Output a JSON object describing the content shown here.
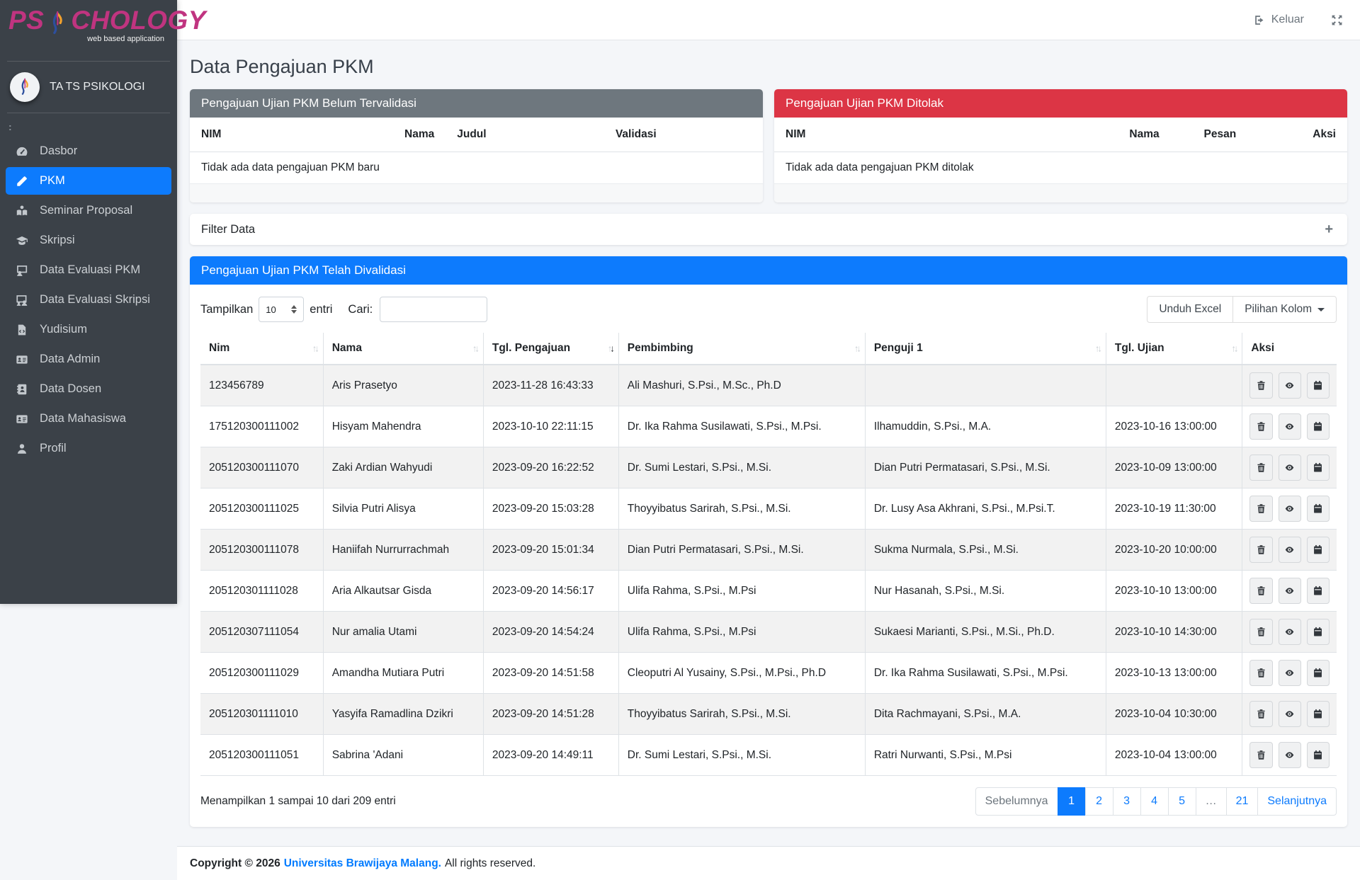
{
  "colors": {
    "primary": "#0d7bfd",
    "danger": "#dc3545",
    "secondary": "#6e777e",
    "sidebar_bg": "#3b4148",
    "brand": "#c03480",
    "body_bg": "#f4f6f9"
  },
  "brand": {
    "prefix": "PS",
    "suffix": "CHOLOGY",
    "tagline": "web based application",
    "logo_icon": "flame-icon"
  },
  "user": {
    "name": "TA TS PSIKOLOGI",
    "avatar_icon": "flame-icon"
  },
  "topbar": {
    "logout_label": "Keluar",
    "logout_icon": "sign-out-icon",
    "expand_icon": "expand-arrows-icon"
  },
  "sidebar": {
    "items": [
      {
        "label": "Dasbor",
        "icon": "gauge-icon",
        "active": false
      },
      {
        "label": "PKM",
        "icon": "pencil-icon",
        "active": true
      },
      {
        "label": "Seminar Proposal",
        "icon": "book-reader-icon",
        "active": false
      },
      {
        "label": "Skripsi",
        "icon": "graduation-cap-icon",
        "active": false
      },
      {
        "label": "Data Evaluasi PKM",
        "icon": "chalkboard-user-icon",
        "active": false
      },
      {
        "label": "Data Evaluasi Skripsi",
        "icon": "chalkboard-users-icon",
        "active": false
      },
      {
        "label": "Yudisium",
        "icon": "file-code-icon",
        "active": false
      },
      {
        "label": "Data Admin",
        "icon": "id-card-icon",
        "active": false
      },
      {
        "label": "Data Dosen",
        "icon": "address-book-icon",
        "active": false
      },
      {
        "label": "Data Mahasiswa",
        "icon": "id-card-icon",
        "active": false
      },
      {
        "label": "Profil",
        "icon": "user-icon",
        "active": false
      }
    ]
  },
  "page": {
    "title": "Data Pengajuan PKM"
  },
  "cards": {
    "pending": {
      "title": "Pengajuan Ujian PKM Belum Tervalidasi",
      "columns": [
        "NIM",
        "Nama",
        "Judul",
        "Validasi"
      ],
      "empty_text": "Tidak ada data pengajuan PKM baru"
    },
    "rejected": {
      "title": "Pengajuan Ujian PKM Ditolak",
      "columns": [
        "NIM",
        "Nama",
        "Pesan",
        "Aksi"
      ],
      "empty_text": "Tidak ada data pengajuan PKM ditolak"
    }
  },
  "filter": {
    "title": "Filter Data",
    "expand_icon": "plus-icon"
  },
  "validated": {
    "title": "Pengajuan Ujian PKM Telah Divalidasi",
    "length_label_before": "Tampilkan",
    "length_value": "10",
    "length_label_after": "entri",
    "search_label": "Cari:",
    "search_value": "",
    "excel_button": "Unduh Excel",
    "columns_button": "Pilihan Kolom",
    "table": {
      "columns": [
        {
          "label": "Nim",
          "sort": "none"
        },
        {
          "label": "Nama",
          "sort": "none"
        },
        {
          "label": "Tgl. Pengajuan",
          "sort": "desc"
        },
        {
          "label": "Pembimbing",
          "sort": "none"
        },
        {
          "label": "Penguji 1",
          "sort": "none"
        },
        {
          "label": "Tgl. Ujian",
          "sort": "none"
        },
        {
          "label": "Aksi",
          "sort": null
        }
      ],
      "rows": [
        {
          "nim": "123456789",
          "nama": "Aris Prasetyo",
          "tgl_pengajuan": "2023-11-28 16:43:33",
          "pembimbing": "Ali Mashuri, S.Psi., M.Sc., Ph.D",
          "penguji1": "",
          "tgl_ujian": ""
        },
        {
          "nim": "175120300111002",
          "nama": "Hisyam Mahendra",
          "tgl_pengajuan": "2023-10-10 22:11:15",
          "pembimbing": "Dr. Ika Rahma Susilawati, S.Psi., M.Psi.",
          "penguji1": "Ilhamuddin, S.Psi., M.A.",
          "tgl_ujian": "2023-10-16 13:00:00"
        },
        {
          "nim": "205120300111070",
          "nama": "Zaki Ardian Wahyudi",
          "tgl_pengajuan": "2023-09-20 16:22:52",
          "pembimbing": "Dr. Sumi Lestari, S.Psi., M.Si.",
          "penguji1": "Dian Putri Permatasari, S.Psi., M.Si.",
          "tgl_ujian": "2023-10-09 13:00:00"
        },
        {
          "nim": "205120300111025",
          "nama": "Silvia Putri Alisya",
          "tgl_pengajuan": "2023-09-20 15:03:28",
          "pembimbing": "Thoyyibatus Sarirah, S.Psi., M.Si.",
          "penguji1": "Dr. Lusy Asa Akhrani, S.Psi., M.Psi.T.",
          "tgl_ujian": "2023-10-19 11:30:00"
        },
        {
          "nim": "205120300111078",
          "nama": "Haniifah Nurrurrachmah",
          "tgl_pengajuan": "2023-09-20 15:01:34",
          "pembimbing": "Dian Putri Permatasari, S.Psi., M.Si.",
          "penguji1": "Sukma Nurmala, S.Psi., M.Si.",
          "tgl_ujian": "2023-10-20 10:00:00"
        },
        {
          "nim": "205120301111028",
          "nama": "Aria Alkautsar Gisda",
          "tgl_pengajuan": "2023-09-20 14:56:17",
          "pembimbing": "Ulifa Rahma, S.Psi., M.Psi",
          "penguji1": "Nur Hasanah, S.Psi., M.Si.",
          "tgl_ujian": "2023-10-10 13:00:00"
        },
        {
          "nim": "205120307111054",
          "nama": "Nur amalia Utami",
          "tgl_pengajuan": "2023-09-20 14:54:24",
          "pembimbing": "Ulifa Rahma, S.Psi., M.Psi",
          "penguji1": "Sukaesi Marianti, S.Psi., M.Si., Ph.D.",
          "tgl_ujian": "2023-10-10 14:30:00"
        },
        {
          "nim": "205120300111029",
          "nama": "Amandha Mutiara Putri",
          "tgl_pengajuan": "2023-09-20 14:51:58",
          "pembimbing": "Cleoputri Al Yusainy, S.Psi., M.Psi., Ph.D",
          "penguji1": "Dr. Ika Rahma Susilawati, S.Psi., M.Psi.",
          "tgl_ujian": "2023-10-13 13:00:00"
        },
        {
          "nim": "205120301111010",
          "nama": "Yasyifa Ramadlina Dzikri",
          "tgl_pengajuan": "2023-09-20 14:51:28",
          "pembimbing": "Thoyyibatus Sarirah, S.Psi., M.Si.",
          "penguji1": "Dita Rachmayani, S.Psi., M.A.",
          "tgl_ujian": "2023-10-04 10:30:00"
        },
        {
          "nim": "205120300111051",
          "nama": "Sabrina 'Adani",
          "tgl_pengajuan": "2023-09-20 14:49:11",
          "pembimbing": "Dr. Sumi Lestari, S.Psi., M.Si.",
          "penguji1": "Ratri Nurwanti, S.Psi., M.Psi",
          "tgl_ujian": "2023-10-04 13:00:00"
        }
      ],
      "row_actions": [
        {
          "name": "delete",
          "icon": "trash-icon"
        },
        {
          "name": "view",
          "icon": "eye-icon"
        },
        {
          "name": "schedule",
          "icon": "calendar-icon"
        }
      ]
    },
    "info_text": "Menampilkan 1 sampai 10 dari 209 entri",
    "pagination": {
      "prev": "Sebelumnya",
      "pages": [
        "1",
        "2",
        "3",
        "4",
        "5",
        "…",
        "21"
      ],
      "active_page": "1",
      "muted_pages": [
        "…"
      ],
      "next": "Selanjutnya"
    }
  },
  "footer": {
    "copyright": "Copyright © 2026",
    "link": "Universitas Brawijaya Malang.",
    "suffix": "All rights reserved."
  }
}
